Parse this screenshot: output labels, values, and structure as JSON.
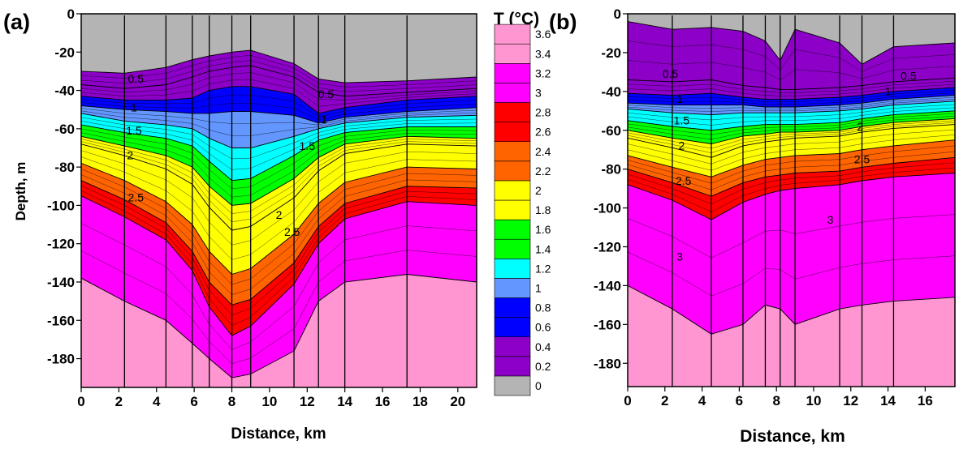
{
  "colorbar": {
    "title": "T (°C)",
    "levels": [
      0,
      0.2,
      0.4,
      0.6,
      0.8,
      1,
      1.2,
      1.4,
      1.6,
      1.8,
      2,
      2.2,
      2.4,
      2.6,
      2.8,
      3,
      3.2,
      3.4,
      3.6
    ],
    "labels": [
      "0",
      "0.2",
      "0.4",
      "0.6",
      "0.8",
      "1",
      "1.2",
      "1.4",
      "1.6",
      "1.8",
      "2",
      "2.2",
      "2.4",
      "2.6",
      "2.8",
      "3",
      "3.2",
      "3.4",
      "3.6"
    ],
    "colors": [
      "#b4b4b4",
      "#8c00c8",
      "#8c00c8",
      "#0000ff",
      "#0000ff",
      "#6496ff",
      "#00ffff",
      "#00ff00",
      "#00ff00",
      "#ffff00",
      "#ffff00",
      "#ff6400",
      "#ff6400",
      "#ff0000",
      "#ff0000",
      "#ff00ff",
      "#ff00ff",
      "#ff96d2",
      "#ff96d2"
    ]
  },
  "chart_data": [
    {
      "type": "heatmap",
      "panel_label": "(a)",
      "title": "",
      "xlabel": "Distance, km",
      "ylabel": "Depth, m",
      "xlim": [
        0,
        21
      ],
      "ylim": [
        -195,
        0
      ],
      "xticks": [
        0,
        2,
        4,
        6,
        8,
        10,
        12,
        14,
        16,
        18,
        20
      ],
      "yticks": [
        0,
        -20,
        -40,
        -60,
        -80,
        -100,
        -120,
        -140,
        -160,
        -180
      ],
      "xtick_labels": [
        "0",
        "2",
        "4",
        "6",
        "8",
        "10",
        "12",
        "14",
        "16",
        "18",
        "20"
      ],
      "ytick_labels": [
        "0",
        "-20",
        "-40",
        "-60",
        "-80",
        "-100",
        "-120",
        "-140",
        "-160",
        "-180"
      ],
      "stations_km": [
        2.3,
        4.5,
        5.9,
        6.8,
        8.0,
        9.0,
        11.3,
        12.6,
        14.0,
        17.3
      ],
      "isotherms": {
        "x": [
          0,
          2.3,
          4.5,
          5.9,
          6.8,
          8.0,
          9.0,
          11.3,
          12.6,
          14.0,
          17.3,
          21
        ],
        "levels": [
          {
            "t": 0.2,
            "depth": [
              -30,
              -31,
              -28,
              -24,
              -22,
              -20,
              -19,
              -26,
              -34,
              -36,
              -35,
              -33
            ]
          },
          {
            "t": 0.5,
            "depth": [
              -37,
              -39,
              -37,
              -33,
              -30,
              -28,
              -27,
              -33,
              -41,
              -43,
              -41,
              -39
            ]
          },
          {
            "t": 0.8,
            "depth": [
              -43,
              -45,
              -45,
              -44,
              -40,
              -38,
              -38,
              -42,
              -52,
              -49,
              -45,
              -43
            ]
          },
          {
            "t": 1.0,
            "depth": [
              -48,
              -50,
              -51,
              -52,
              -52,
              -51,
              -51,
              -53,
              -57,
              -54,
              -51,
              -49
            ]
          },
          {
            "t": 1.2,
            "depth": [
              -52,
              -56,
              -58,
              -60,
              -65,
              -70,
              -70,
              -64,
              -60,
              -57,
              -54,
              -53
            ]
          },
          {
            "t": 1.5,
            "depth": [
              -58,
              -62,
              -65,
              -69,
              -77,
              -87,
              -86,
              -74,
              -66,
              -62,
              -59,
              -59
            ]
          },
          {
            "t": 1.8,
            "depth": [
              -64,
              -69,
              -74,
              -80,
              -90,
              -100,
              -99,
              -86,
              -75,
              -68,
              -64,
              -65
            ]
          },
          {
            "t": 2.0,
            "depth": [
              -68,
              -74,
              -81,
              -89,
              -101,
              -113,
              -111,
              -96,
              -82,
              -73,
              -68,
              -69
            ]
          },
          {
            "t": 2.5,
            "depth": [
              -78,
              -87,
              -98,
              -110,
              -124,
              -136,
              -133,
              -115,
              -99,
              -88,
              -80,
              -81
            ]
          },
          {
            "t": 2.8,
            "depth": [
              -87,
              -97,
              -109,
              -124,
              -140,
              -152,
              -149,
              -130,
              -111,
              -99,
              -90,
              -91
            ]
          },
          {
            "t": 3.0,
            "depth": [
              -95,
              -106,
              -118,
              -134,
              -153,
              -168,
              -163,
              -141,
              -120,
              -107,
              -98,
              -100
            ]
          },
          {
            "t": 3.4,
            "depth": [
              -138,
              -150,
              -160,
              -172,
              -180,
              -190,
              -188,
              -176,
              -150,
              -140,
              -136,
              -140
            ]
          }
        ]
      },
      "contour_labels": [
        {
          "text": "0.5",
          "x": 2.9,
          "y": -36
        },
        {
          "text": "0.5",
          "x": 13.0,
          "y": -44
        },
        {
          "text": "1",
          "x": 2.8,
          "y": -51
        },
        {
          "text": "1",
          "x": 12.9,
          "y": -57
        },
        {
          "text": "1.5",
          "x": 2.8,
          "y": -63
        },
        {
          "text": "1.5",
          "x": 12.0,
          "y": -71
        },
        {
          "text": "2",
          "x": 2.6,
          "y": -76
        },
        {
          "text": "2",
          "x": 10.5,
          "y": -107
        },
        {
          "text": "2.5",
          "x": 2.9,
          "y": -98
        },
        {
          "text": "2.5",
          "x": 11.2,
          "y": -116
        }
      ]
    },
    {
      "type": "heatmap",
      "panel_label": "(b)",
      "title": "",
      "xlabel": "Distance, km",
      "ylabel": "",
      "xlim": [
        0,
        17.6
      ],
      "ylim": [
        -192,
        0
      ],
      "xticks": [
        0,
        2,
        4,
        6,
        8,
        10,
        12,
        14,
        16
      ],
      "yticks": [
        0,
        -20,
        -40,
        -60,
        -80,
        -100,
        -120,
        -140,
        -160,
        -180
      ],
      "xtick_labels": [
        "0",
        "2",
        "4",
        "6",
        "8",
        "10",
        "12",
        "14",
        "16"
      ],
      "ytick_labels": [
        "0",
        "-20",
        "-40",
        "-60",
        "-80",
        "-100",
        "-120",
        "-140",
        "-160",
        "-180"
      ],
      "stations_km": [
        2.4,
        4.5,
        6.2,
        7.4,
        8.2,
        9.0,
        11.4,
        12.6,
        14.3
      ],
      "isotherms": {
        "x": [
          0,
          2.4,
          4.5,
          6.2,
          7.4,
          8.2,
          9.0,
          11.4,
          12.6,
          14.3,
          17.6
        ],
        "levels": [
          {
            "t": 0.2,
            "depth": [
              -4,
              -8,
              -7,
              -9,
              -14,
              -24,
              -8,
              -15,
              -26,
              -17,
              -15
            ]
          },
          {
            "t": 0.5,
            "depth": [
              -34,
              -35,
              -34,
              -37,
              -38,
              -39,
              -39,
              -38,
              -37,
              -35,
              -33
            ]
          },
          {
            "t": 0.8,
            "depth": [
              -41,
              -42,
              -41,
              -43,
              -44,
              -44,
              -44,
              -43,
              -42,
              -40,
              -38
            ]
          },
          {
            "t": 1.0,
            "depth": [
              -46,
              -47,
              -47,
              -47,
              -48,
              -48,
              -48,
              -47,
              -46,
              -44,
              -42
            ]
          },
          {
            "t": 1.2,
            "depth": [
              -49,
              -51,
              -52,
              -51,
              -51,
              -51,
              -51,
              -50,
              -49,
              -47,
              -45
            ]
          },
          {
            "t": 1.5,
            "depth": [
              -55,
              -58,
              -60,
              -58,
              -57,
              -57,
              -57,
              -56,
              -54,
              -52,
              -50
            ]
          },
          {
            "t": 1.8,
            "depth": [
              -60,
              -64,
              -67,
              -63,
              -62,
              -61,
              -61,
              -60,
              -58,
              -56,
              -54
            ]
          },
          {
            "t": 2.0,
            "depth": [
              -64,
              -69,
              -74,
              -68,
              -66,
              -65,
              -64,
              -63,
              -61,
              -59,
              -57
            ]
          },
          {
            "t": 2.5,
            "depth": [
              -73,
              -79,
              -84,
              -78,
              -75,
              -74,
              -73,
              -72,
              -70,
              -68,
              -65
            ]
          },
          {
            "t": 2.8,
            "depth": [
              -80,
              -87,
              -94,
              -87,
              -84,
              -83,
              -82,
              -81,
              -79,
              -77,
              -74
            ]
          },
          {
            "t": 3.0,
            "depth": [
              -88,
              -96,
              -106,
              -97,
              -93,
              -91,
              -90,
              -88,
              -86,
              -84,
              -82
            ]
          },
          {
            "t": 3.4,
            "depth": [
              -140,
              -152,
              -165,
              -160,
              -150,
              -152,
              -160,
              -152,
              -150,
              -148,
              -146
            ]
          }
        ]
      },
      "contour_labels": [
        {
          "text": "0.5",
          "x": 2.3,
          "y": -33
        },
        {
          "text": "0.5",
          "x": 15.1,
          "y": -34
        },
        {
          "text": "1",
          "x": 2.8,
          "y": -46
        },
        {
          "text": "1",
          "x": 14.0,
          "y": -42
        },
        {
          "text": "1.5",
          "x": 2.9,
          "y": -57
        },
        {
          "text": "2",
          "x": 2.9,
          "y": -70
        },
        {
          "text": "2",
          "x": 12.5,
          "y": -60
        },
        {
          "text": "2.5",
          "x": 3.0,
          "y": -88
        },
        {
          "text": "2.5",
          "x": 12.6,
          "y": -77
        },
        {
          "text": "3",
          "x": 10.9,
          "y": -108
        },
        {
          "text": "3",
          "x": 2.8,
          "y": -127
        }
      ]
    }
  ]
}
